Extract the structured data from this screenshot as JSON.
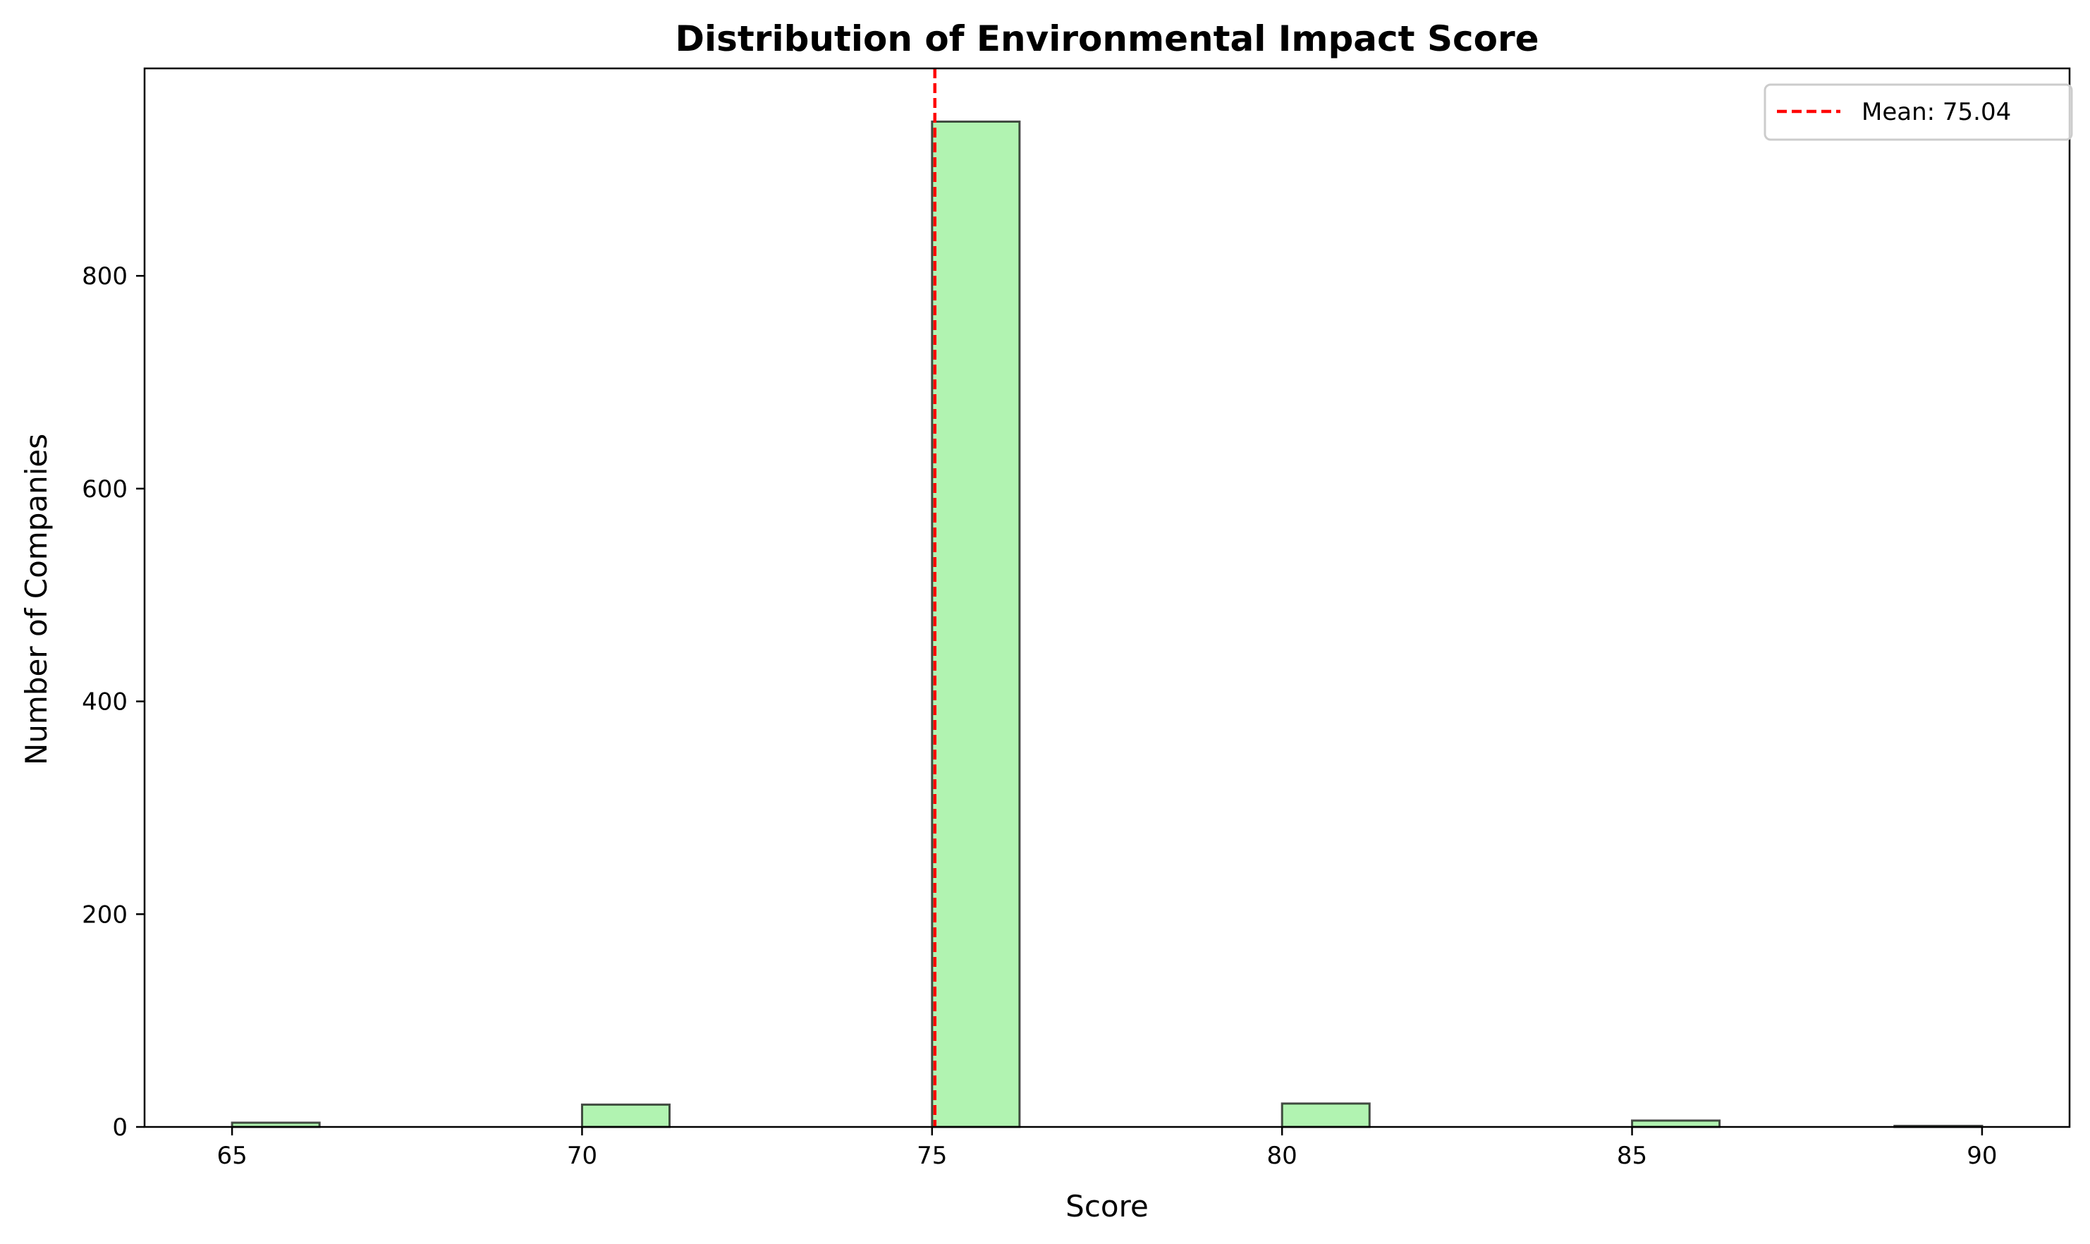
{
  "chart_data": {
    "type": "bar",
    "title": "Distribution of Environmental Impact Score",
    "xlabel": "Score",
    "ylabel": "Number of Companies",
    "xlim": [
      63.75,
      91.25
    ],
    "ylim": [
      0,
      995
    ],
    "xticks": [
      65,
      70,
      75,
      80,
      85,
      90
    ],
    "yticks": [
      0,
      200,
      400,
      600,
      800
    ],
    "bins": [
      {
        "start": 65.0,
        "end": 66.25,
        "count": 4
      },
      {
        "start": 70.0,
        "end": 71.25,
        "count": 21
      },
      {
        "start": 75.0,
        "end": 76.25,
        "count": 945
      },
      {
        "start": 80.0,
        "end": 81.25,
        "count": 22
      },
      {
        "start": 85.0,
        "end": 86.25,
        "count": 6
      },
      {
        "start": 88.75,
        "end": 90.0,
        "count": 1
      }
    ],
    "mean": 75.04,
    "legend": {
      "label": "Mean: 75.04",
      "position": "top-right"
    },
    "grid": false,
    "colors": {
      "bar_fill": "#90EE90",
      "bar_edge": "#000000",
      "mean_line": "#FF0000"
    }
  }
}
